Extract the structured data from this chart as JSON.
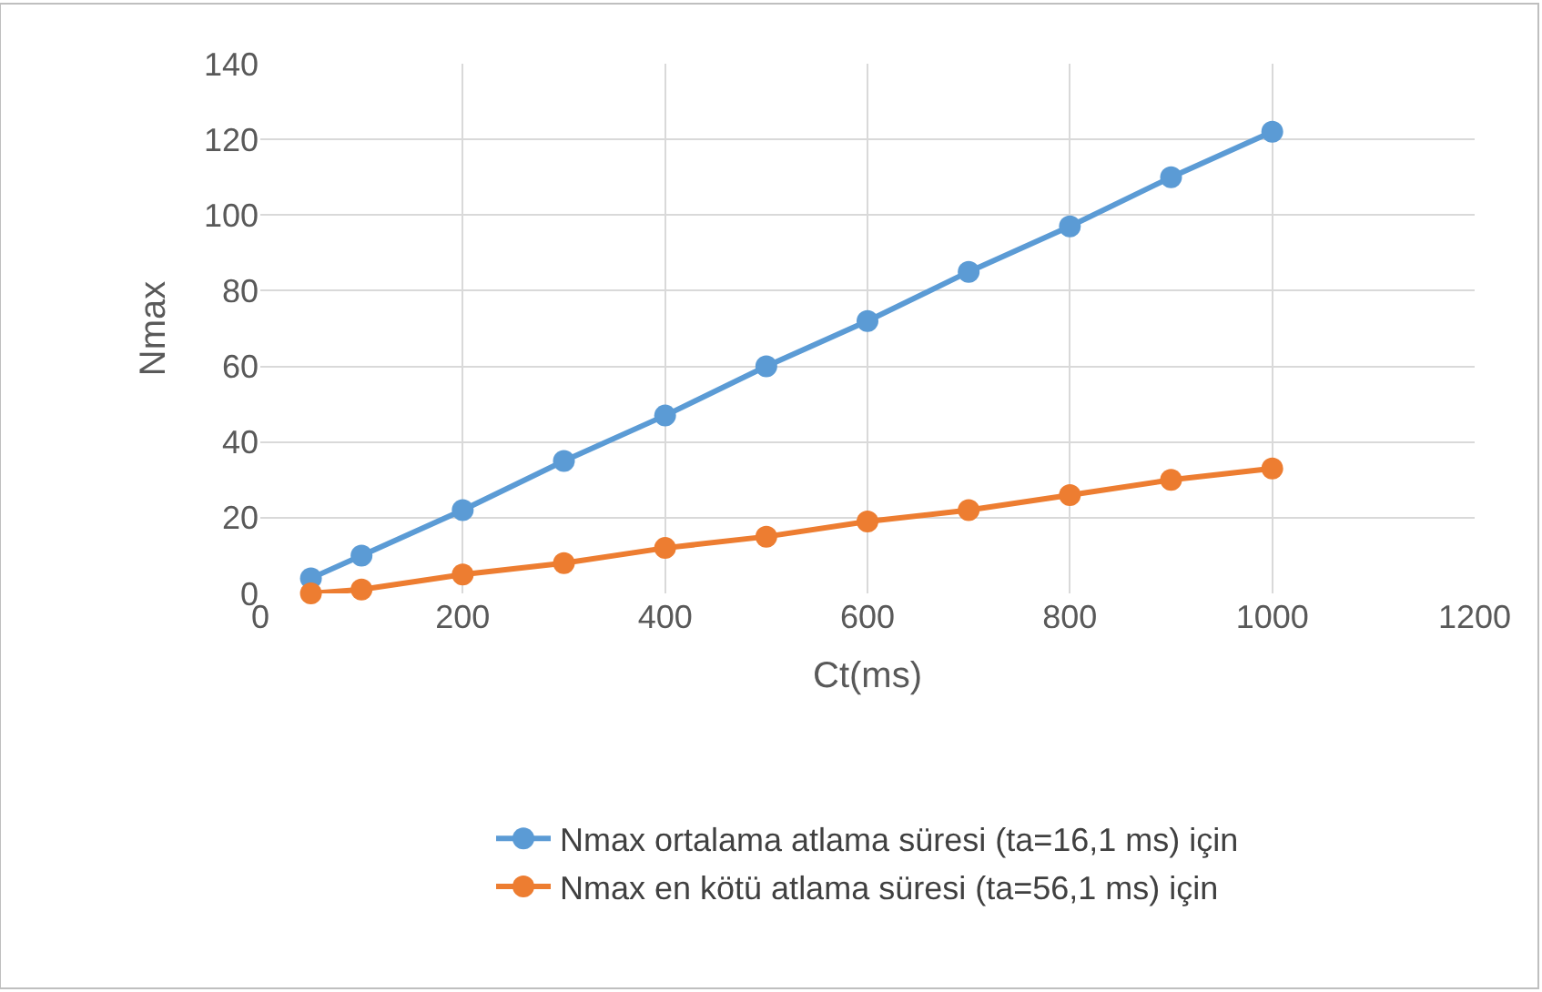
{
  "chart_data": {
    "type": "line",
    "xlabel": "Ct(ms)",
    "ylabel": "Nmax",
    "x": [
      50,
      100,
      200,
      300,
      400,
      500,
      600,
      700,
      800,
      900,
      1000
    ],
    "series": [
      {
        "name": "Nmax ortalama atlama süresi (ta=16,1 ms) için",
        "color": "#5b9bd5",
        "values": [
          4,
          10,
          22,
          35,
          47,
          60,
          72,
          85,
          97,
          110,
          122
        ]
      },
      {
        "name": "Nmax en kötü atlama süresi (ta=56,1 ms) için",
        "color": "#ed7d31",
        "values": [
          0,
          1,
          5,
          8,
          12,
          15,
          19,
          22,
          26,
          30,
          33
        ]
      }
    ],
    "xlim": [
      0,
      1200
    ],
    "xticks": [
      0,
      200,
      400,
      600,
      800,
      1000,
      1200
    ],
    "ylim": [
      0,
      140
    ],
    "yticks": [
      0,
      20,
      40,
      60,
      80,
      100,
      120,
      140
    ],
    "grid": true,
    "legend": "bottom",
    "marker": "circle",
    "line_style": "solid"
  }
}
